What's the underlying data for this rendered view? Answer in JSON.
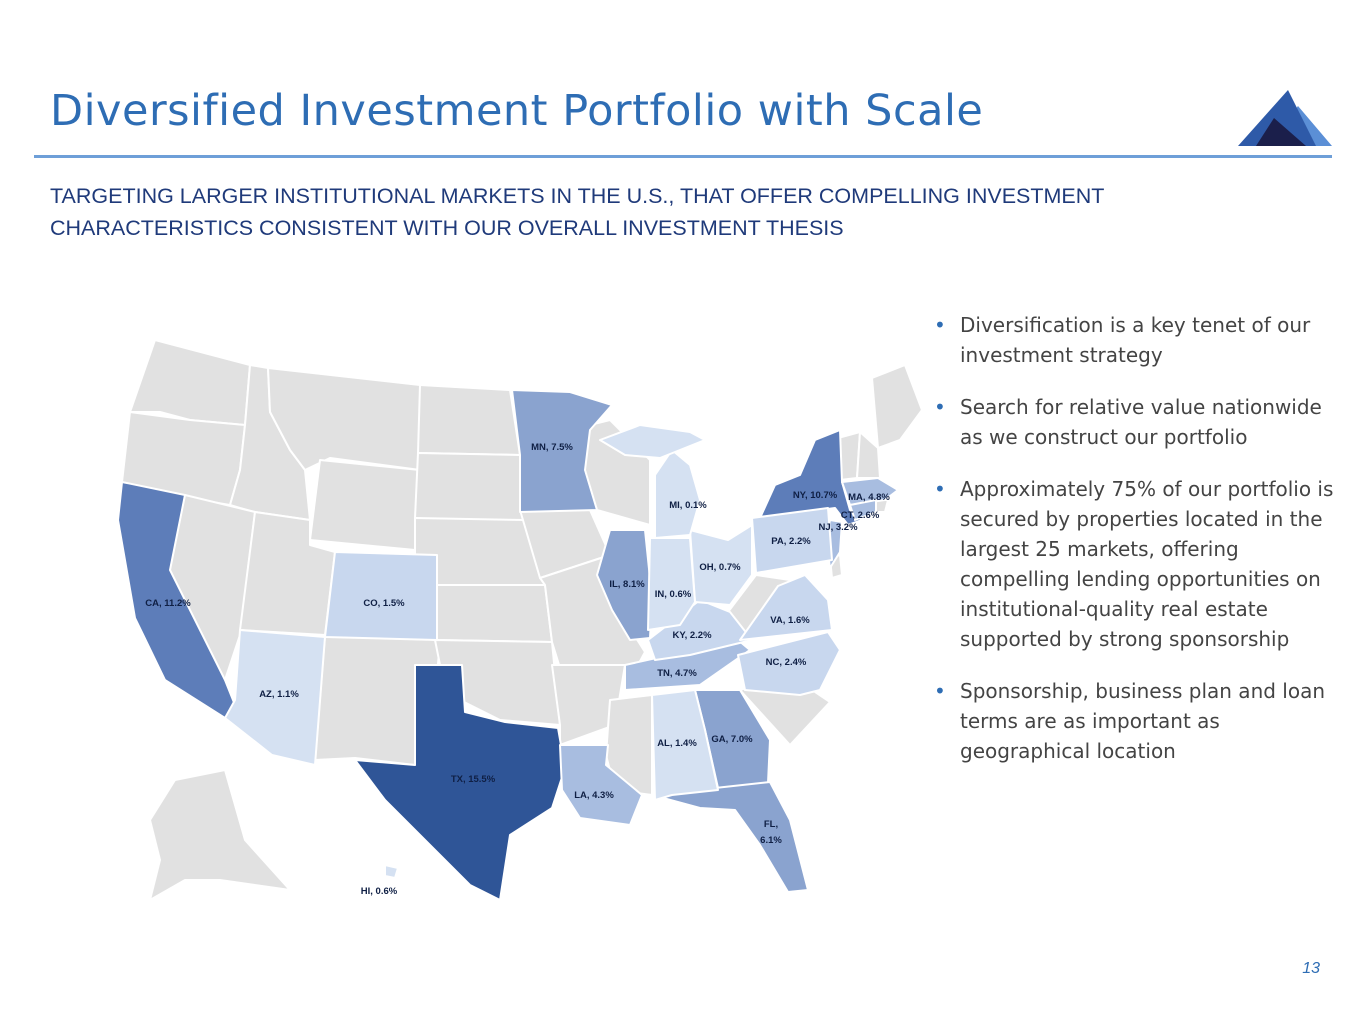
{
  "slide": {
    "title": "Diversified Investment Portfolio with Scale",
    "subtitle": "TARGETING LARGER INSTITUTIONAL MARKETS IN THE U.S., THAT OFFER COMPELLING INVESTMENT CHARACTERISTICS CONSISTENT WITH OUR OVERALL INVESTMENT THESIS",
    "page_number": "13"
  },
  "bullets": [
    "Diversification is a key tenet of our investment strategy",
    "Search for relative value nationwide as we construct our portfolio",
    "Approximately 75% of our portfolio is secured by properties located in the largest 25 markets, offering compelling lending opportunities on institutional-quality real estate supported by strong sponsorship",
    "Sponsorship, business plan and loan terms are as important as geographical location"
  ],
  "bullet_glyph": "•",
  "map": {
    "labels": {
      "tx": "TX, 15.5%",
      "ca": "CA, 11.2%",
      "ny": "NY, 10.7%",
      "il": "IL, 8.1%",
      "mn": "MN, 7.5%",
      "ga": "GA, 7.0%",
      "fl_state": "FL,",
      "fl_value": "6.1%",
      "ma": "MA, 4.8%",
      "tn": "TN, 4.7%",
      "la": "LA, 4.3%",
      "nj": "NJ, 3.2%",
      "ct": "CT, 2.6%",
      "nc": "NC, 2.4%",
      "pa": "PA, 2.2%",
      "ky": "KY, 2.2%",
      "va": "VA, 1.6%",
      "co": "CO, 1.5%",
      "al": "AL, 1.4%",
      "az": "AZ, 1.1%",
      "oh": "OH, 0.7%",
      "in": "IN, 0.6%",
      "hi": "HI, 0.6%",
      "mi": "MI, 0.1%"
    },
    "colors": {
      "none": "#e1e1e1",
      "very_low": "#d5e1f2",
      "low": "#c8d7ee",
      "mid": "#a8bde0",
      "mid_high": "#8aa3cf",
      "high": "#5d7db9",
      "top": "#2f5597"
    }
  },
  "logo_colors": [
    "#1b1f4b",
    "#2e5aa8",
    "#5b8fd6"
  ]
}
